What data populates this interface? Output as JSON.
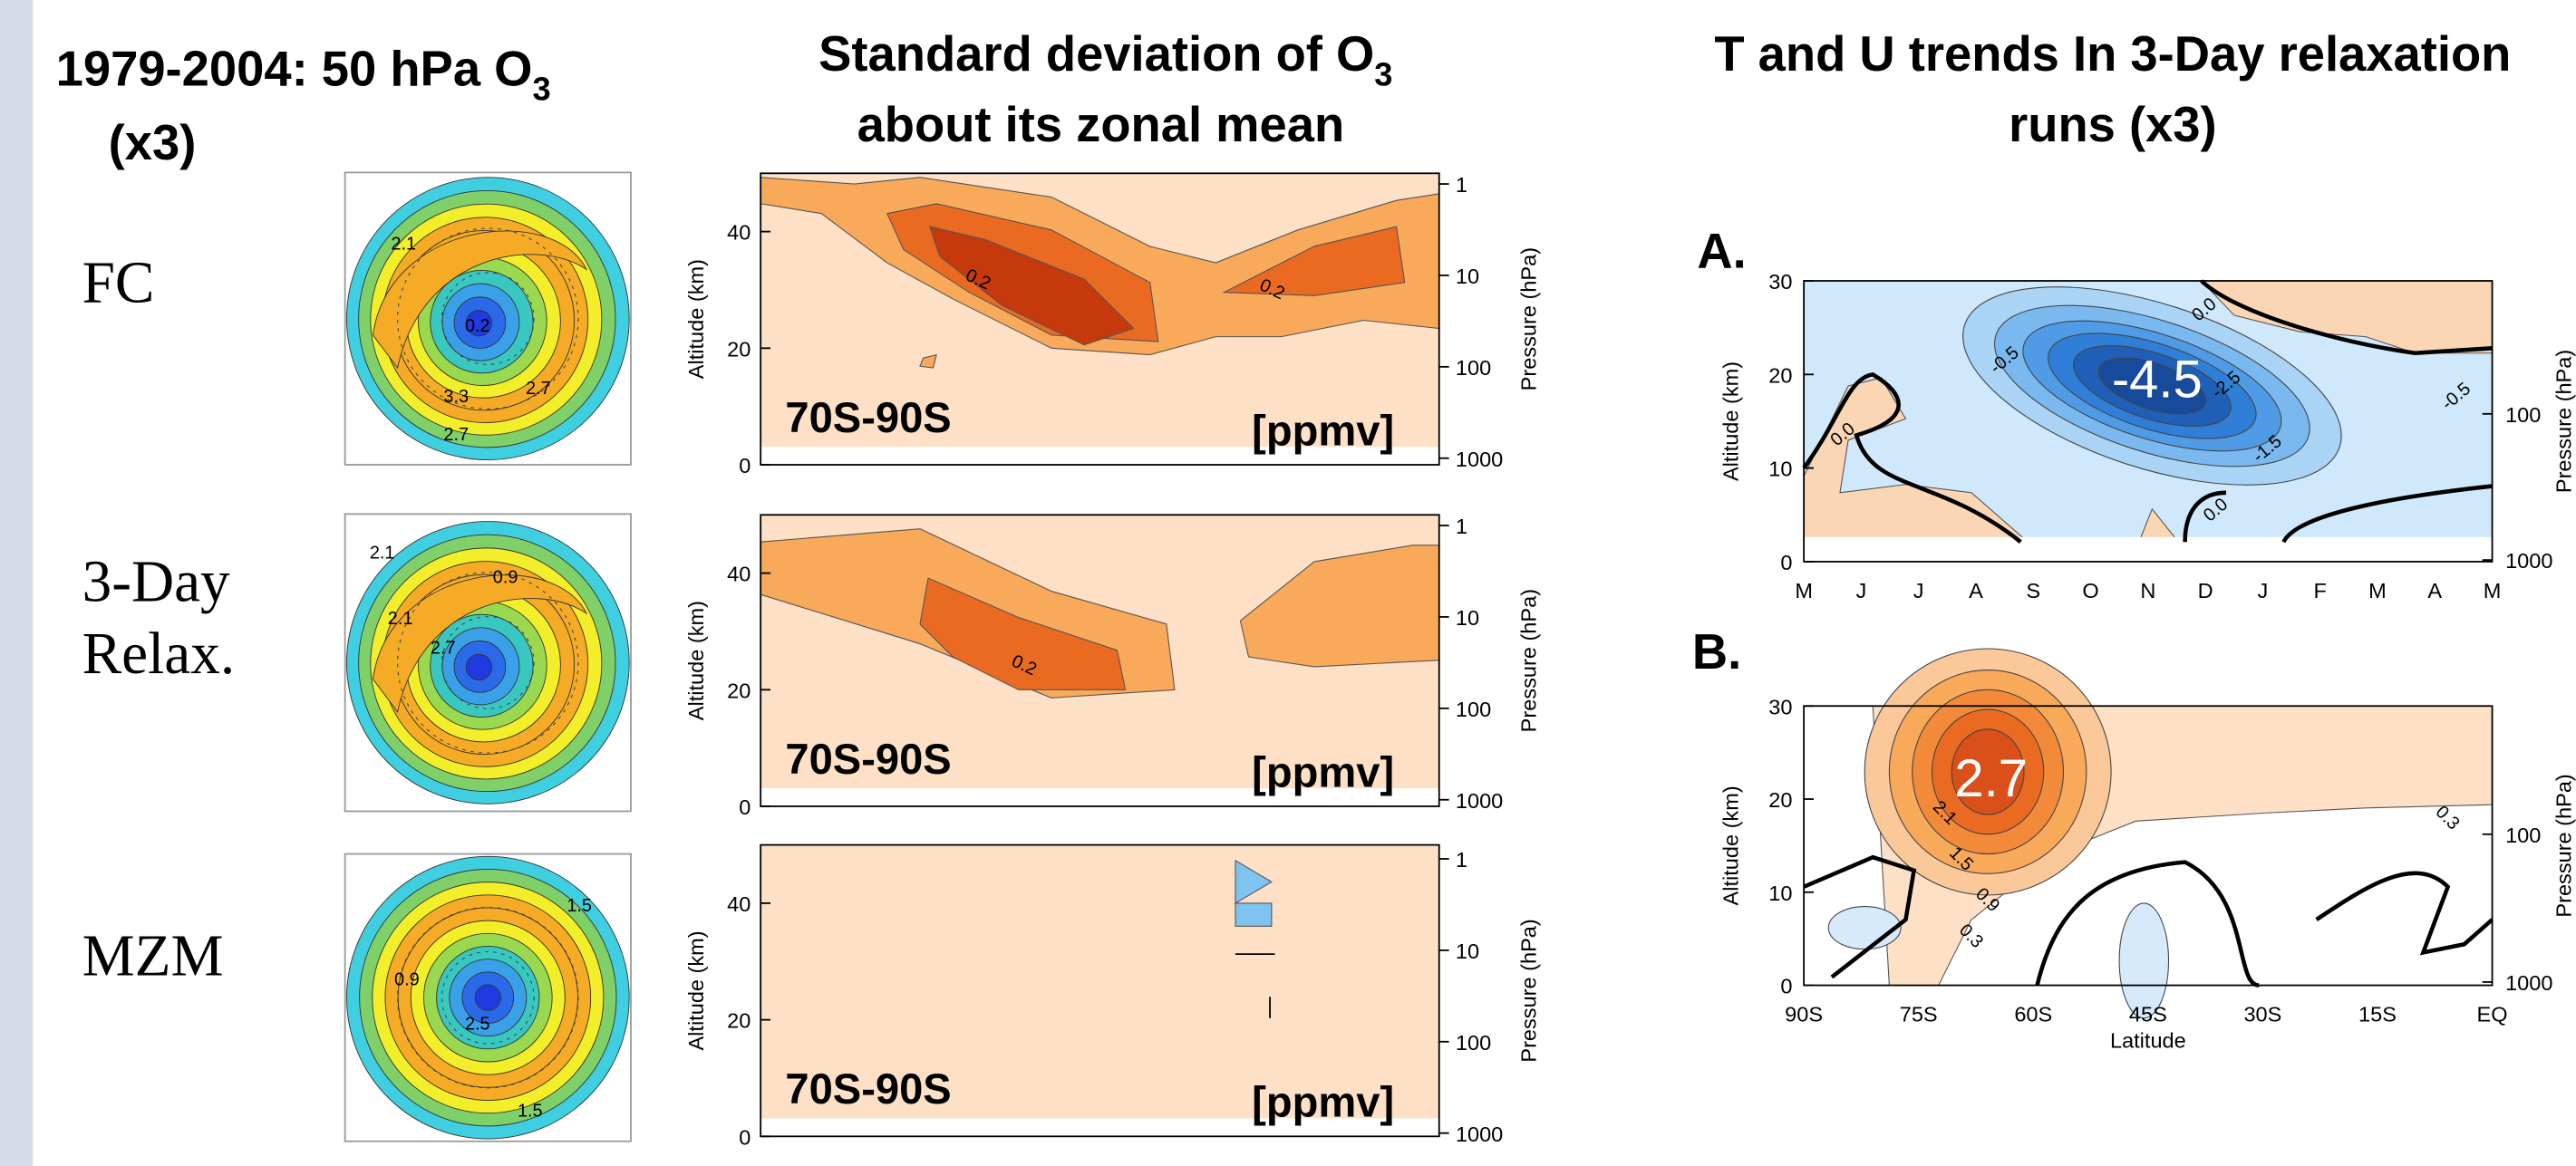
{
  "left": {
    "title": "1979-2004: 50 hPa O",
    "title_sub": "3",
    "title_end": "(x3)",
    "rows": [
      {
        "label": [
          "FC"
        ],
        "contours": [
          "2.1",
          "3.3",
          "2.7",
          "0.2",
          "2.7"
        ]
      },
      {
        "label": [
          "3-Day",
          "Relax."
        ],
        "contours": [
          "2.7",
          "2.1",
          "2.1",
          "0.9"
        ]
      },
      {
        "label": [
          "MZM"
        ],
        "contours": [
          "1.5",
          "0.9",
          "2.5",
          "1.5"
        ]
      }
    ]
  },
  "middle": {
    "title": [
      "Standard deviation of O",
      "about its zonal mean"
    ],
    "title_sub": "3",
    "y_label": "Altitude (km)",
    "y2_label": "Pressure (hPa)",
    "yticks": [
      0,
      20,
      40
    ],
    "y2ticks": [
      1,
      10,
      100,
      1000
    ],
    "panels": [
      {
        "region": "70S-90S",
        "unit": "[ppmv]",
        "contours": [
          "0.2",
          "0.2"
        ]
      },
      {
        "region": "70S-90S",
        "unit": "[ppmv]",
        "contours": [
          "0.2"
        ]
      },
      {
        "region": "70S-90S",
        "unit": "[ppmv]",
        "contours": []
      }
    ]
  },
  "right": {
    "title": [
      "T and U trends In 3-Day relaxation",
      "runs (x3)"
    ],
    "y_label": "Altitude (km)",
    "y2_label": "Pressure (hPa)",
    "yticks": [
      0,
      10,
      20,
      30
    ],
    "y2ticks": [
      100,
      1000
    ],
    "panels": [
      {
        "letter": "A.",
        "xticks": [
          "M",
          "J",
          "J",
          "A",
          "S",
          "O",
          "N",
          "D",
          "J",
          "F",
          "M",
          "A",
          "M"
        ],
        "peak": "-4.5",
        "contours": [
          "-0.5",
          "-2.5",
          "-1.5",
          "-0.5",
          "0.0",
          "0.0",
          "0.0"
        ]
      },
      {
        "letter": "B.",
        "xticks": [
          "90S",
          "75S",
          "60S",
          "45S",
          "30S",
          "15S",
          "EQ"
        ],
        "x_label": "Latitude",
        "peak": "2.7",
        "contours": [
          "2.1",
          "1.5",
          "0.9",
          "0.3",
          "0.3"
        ]
      }
    ]
  }
}
